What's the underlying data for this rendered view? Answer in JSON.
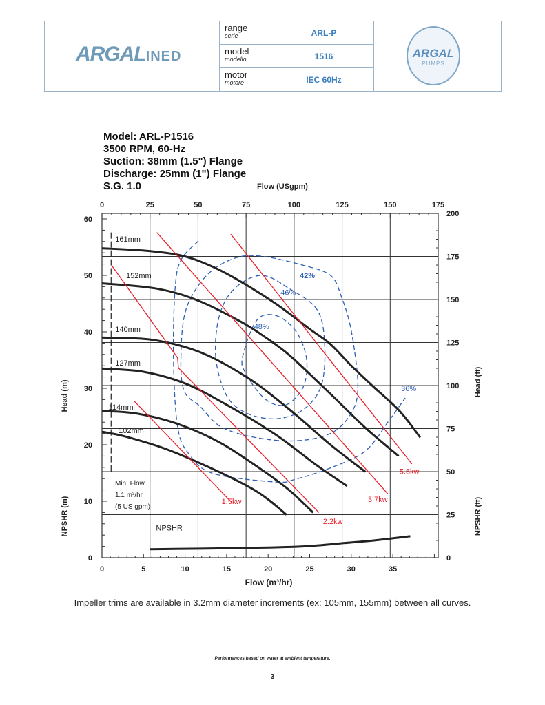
{
  "header": {
    "brand_logo": "ARGAL INED",
    "badge_logo": "ARGAL ITALY PUMPS",
    "rows": [
      {
        "label": "range",
        "label_it": "serie",
        "value": "ARL-P"
      },
      {
        "label": "model",
        "label_it": "modello",
        "value": "1516"
      },
      {
        "label": "motor",
        "label_it": "motore",
        "value": "IEC 60Hz"
      }
    ]
  },
  "info": [
    "Model: ARL-P1516",
    "3500 RPM, 60-Hz",
    "Suction: 38mm (1.5\") Flange",
    "Discharge: 25mm (1\") Flange",
    "S.G. 1.0"
  ],
  "caption": "Impeller trims are available in 3.2mm diameter increments (ex: 105mm, 155mm) between all curves.",
  "footnote": "Performances based on water at ambient temperature.",
  "page_number": "3",
  "colors": {
    "head_curve": "#222222",
    "power": "#e8202a",
    "efficiency": "#2f5fb5",
    "header_text": "#3a7fc0"
  },
  "chart_data": {
    "type": "line",
    "xlabel": "Flow (m³/hr)",
    "x2label": "Flow (USgpm)",
    "ylabel": "Head (m)",
    "y2label": "Head (ft)",
    "npshr_ylabel": "NPSHR (m)",
    "npshr_y2label": "NPSHR (ft)",
    "xlim": [
      0,
      40.5
    ],
    "ylim": [
      0,
      60.5
    ],
    "x_ticks": [
      0,
      5,
      10,
      15,
      20,
      25,
      30,
      35
    ],
    "x2_ticks": [
      0,
      25,
      50,
      75,
      100,
      125,
      150,
      175
    ],
    "y_ticks": [
      0,
      10,
      20,
      30,
      40,
      50,
      60
    ],
    "y2_ticks": [
      0,
      25,
      50,
      75,
      100,
      125,
      150,
      175,
      200
    ],
    "grid": true,
    "min_flow": {
      "flow": 1.1,
      "lines": [
        "Min. Flow",
        "1.1 m³/hr",
        "(5 US gpm)"
      ]
    },
    "head_curves": [
      {
        "name": "161mm",
        "points": [
          [
            0,
            54.8
          ],
          [
            5,
            54.4
          ],
          [
            9.3,
            53.6
          ],
          [
            12.6,
            52
          ],
          [
            16,
            49.5
          ],
          [
            20.9,
            45
          ],
          [
            25,
            40.5
          ],
          [
            27.5,
            37.8
          ],
          [
            30,
            34
          ],
          [
            32.5,
            30.5
          ],
          [
            35.8,
            26
          ],
          [
            38.3,
            21.3
          ]
        ]
      },
      {
        "name": "152mm",
        "points": [
          [
            0,
            48.6
          ],
          [
            6.8,
            47.6
          ],
          [
            11.8,
            45.4
          ],
          [
            16.7,
            41.8
          ],
          [
            19.5,
            39.2
          ],
          [
            22.6,
            35.8
          ],
          [
            27.5,
            29
          ],
          [
            31.7,
            23
          ],
          [
            35.7,
            18
          ]
        ]
      },
      {
        "name": "140mm",
        "points": [
          [
            0,
            39
          ],
          [
            6,
            38.6
          ],
          [
            11.8,
            36.4
          ],
          [
            17.6,
            31.8
          ],
          [
            22.6,
            26.2
          ],
          [
            27.5,
            20
          ],
          [
            31.7,
            15.2
          ]
        ]
      },
      {
        "name": "127mm",
        "points": [
          [
            0,
            33.5
          ],
          [
            5.1,
            32.9
          ],
          [
            10.1,
            30.8
          ],
          [
            15.1,
            27
          ],
          [
            20.9,
            21.8
          ],
          [
            25.9,
            16.3
          ],
          [
            29.5,
            12.7
          ]
        ]
      },
      {
        "name": "114mm",
        "points": [
          [
            0,
            26
          ],
          [
            4.3,
            25.5
          ],
          [
            9.3,
            23.6
          ],
          [
            14.3,
            20.3
          ],
          [
            19.2,
            15.6
          ],
          [
            22.5,
            12
          ],
          [
            25.4,
            8
          ]
        ]
      },
      {
        "name": "102mm",
        "points": [
          [
            0,
            22.3
          ],
          [
            2.7,
            21.5
          ],
          [
            7.6,
            19.3
          ],
          [
            12.6,
            16.2
          ],
          [
            17.6,
            12.6
          ],
          [
            20.1,
            10.2
          ],
          [
            22.2,
            7.6
          ]
        ]
      }
    ],
    "npshr": {
      "label": "NPSHR",
      "points": [
        [
          5.8,
          1.5
        ],
        [
          16.7,
          1.7
        ],
        [
          24.2,
          2
        ],
        [
          29.2,
          2.6
        ],
        [
          33,
          3.1
        ],
        [
          37.1,
          3.8
        ]
      ]
    },
    "power_lines": [
      {
        "name": "1.5kw",
        "points": [
          [
            3.9,
            27.7
          ],
          [
            15.6,
            9.8
          ]
        ]
      },
      {
        "name": "2.2kw",
        "points": [
          [
            1.2,
            51.7
          ],
          [
            9.1,
            35.4
          ],
          [
            9.2,
            33.6
          ],
          [
            26.1,
            8.0
          ]
        ]
      },
      {
        "name": "3.7kw",
        "points": [
          [
            6.6,
            57.6
          ],
          [
            34.4,
            11.3
          ]
        ]
      },
      {
        "name": "5.6kw",
        "points": [
          [
            15.5,
            57.3
          ],
          [
            37.3,
            16.6
          ]
        ]
      }
    ],
    "efficiency_curves": [
      {
        "name": "36%",
        "closed": false,
        "points": [
          [
            11.6,
            56.1
          ],
          [
            9.5,
            52.7
          ],
          [
            8.8,
            47.6
          ],
          [
            8.6,
            35.4
          ],
          [
            9.1,
            23.2
          ],
          [
            10.5,
            18.3
          ],
          [
            13.4,
            14.9
          ],
          [
            20.9,
            13.4
          ],
          [
            23.3,
            13.9
          ],
          [
            27.5,
            15.9
          ],
          [
            31.7,
            18.9
          ],
          [
            34.6,
            24.4
          ],
          [
            36.5,
            28.3
          ]
        ]
      },
      {
        "name": "42%",
        "closed": true,
        "points": [
          [
            9.5,
            35.4
          ],
          [
            10.1,
            43.9
          ],
          [
            12.6,
            50
          ],
          [
            15.9,
            53
          ],
          [
            19.2,
            53.4
          ],
          [
            24.2,
            51.8
          ],
          [
            27.5,
            50
          ],
          [
            28.8,
            46.3
          ],
          [
            30,
            40.2
          ],
          [
            30.8,
            30.5
          ],
          [
            30,
            25.6
          ],
          [
            27.5,
            22
          ],
          [
            23.3,
            20.7
          ],
          [
            18.4,
            21.3
          ],
          [
            14.3,
            23.2
          ],
          [
            11.8,
            26.8
          ],
          [
            9.9,
            29.5
          ]
        ]
      },
      {
        "name": "46%",
        "closed": true,
        "points": [
          [
            13.7,
            35.4
          ],
          [
            14.1,
            42.7
          ],
          [
            15.9,
            47.6
          ],
          [
            19.2,
            50
          ],
          [
            22.6,
            47.6
          ],
          [
            25.9,
            43.9
          ],
          [
            26.8,
            37.8
          ],
          [
            26.4,
            30.5
          ],
          [
            24.2,
            26.2
          ],
          [
            20.9,
            24.6
          ],
          [
            17.4,
            25.6
          ],
          [
            15,
            28.7
          ]
        ]
      },
      {
        "name": "48%",
        "closed": true,
        "points": [
          [
            16.9,
            35.4
          ],
          [
            18.6,
            42
          ],
          [
            20.9,
            42.9
          ],
          [
            23.3,
            40.2
          ],
          [
            24.6,
            35.4
          ],
          [
            24.3,
            30.5
          ],
          [
            22.6,
            27.4
          ],
          [
            20.9,
            27.1
          ],
          [
            19.2,
            28.7
          ],
          [
            17.4,
            32.4
          ]
        ]
      }
    ]
  }
}
